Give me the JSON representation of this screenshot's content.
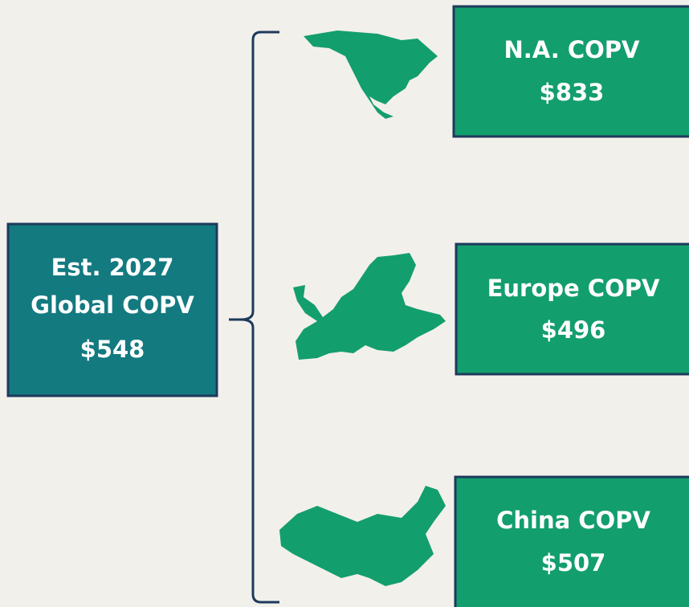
{
  "source": {
    "lines": [
      "Est. 2027",
      "Global COPV"
    ],
    "value": "$548"
  },
  "targets": [
    {
      "label": "N.A. COPV",
      "value": "$833"
    },
    {
      "label": "Europe COPV",
      "value": "$496"
    },
    {
      "label": "China COPV",
      "value": "$507"
    }
  ]
}
